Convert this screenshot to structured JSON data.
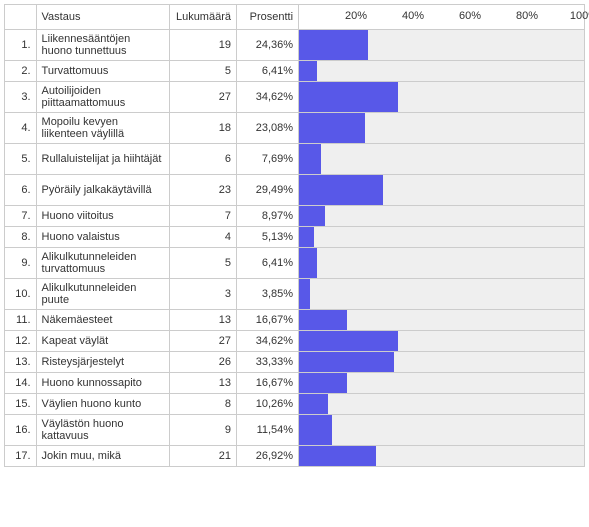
{
  "headers": {
    "response": "Vastaus",
    "count": "Lukumäärä",
    "percent": "Prosentti"
  },
  "axis": {
    "ticks": [
      20,
      40,
      60,
      80,
      100
    ],
    "max": 100,
    "tick_suffix": "%"
  },
  "bar_color": "#5858e8",
  "track_color": "#efefef",
  "border_color": "#cccccc",
  "rows": [
    {
      "idx": "1.",
      "label": "Liikennesääntöjen huono tunnettuus",
      "count": 19,
      "pct": "24,36%",
      "value": 24.36,
      "tall": true
    },
    {
      "idx": "2.",
      "label": "Turvattomuus",
      "count": 5,
      "pct": "6,41%",
      "value": 6.41,
      "tall": false
    },
    {
      "idx": "3.",
      "label": "Autoilijoiden piittaamattomuus",
      "count": 27,
      "pct": "34,62%",
      "value": 34.62,
      "tall": true
    },
    {
      "idx": "4.",
      "label": "Mopoilu kevyen liikenteen väylillä",
      "count": 18,
      "pct": "23,08%",
      "value": 23.08,
      "tall": true
    },
    {
      "idx": "5.",
      "label": "Rullaluistelijat ja hiihtäjät",
      "count": 6,
      "pct": "7,69%",
      "value": 7.69,
      "tall": true
    },
    {
      "idx": "6.",
      "label": "Pyöräily jalkakäytävillä",
      "count": 23,
      "pct": "29,49%",
      "value": 29.49,
      "tall": true
    },
    {
      "idx": "7.",
      "label": "Huono viitoitus",
      "count": 7,
      "pct": "8,97%",
      "value": 8.97,
      "tall": false
    },
    {
      "idx": "8.",
      "label": "Huono valaistus",
      "count": 4,
      "pct": "5,13%",
      "value": 5.13,
      "tall": false
    },
    {
      "idx": "9.",
      "label": "Alikulkutunneleiden turvattomuus",
      "count": 5,
      "pct": "6,41%",
      "value": 6.41,
      "tall": true
    },
    {
      "idx": "10.",
      "label": "Alikulkutunneleiden puute",
      "count": 3,
      "pct": "3,85%",
      "value": 3.85,
      "tall": true
    },
    {
      "idx": "11.",
      "label": "Näkemäesteet",
      "count": 13,
      "pct": "16,67%",
      "value": 16.67,
      "tall": false
    },
    {
      "idx": "12.",
      "label": "Kapeat väylät",
      "count": 27,
      "pct": "34,62%",
      "value": 34.62,
      "tall": false
    },
    {
      "idx": "13.",
      "label": "Risteysjärjestelyt",
      "count": 26,
      "pct": "33,33%",
      "value": 33.33,
      "tall": false
    },
    {
      "idx": "14.",
      "label": "Huono kunnossapito",
      "count": 13,
      "pct": "16,67%",
      "value": 16.67,
      "tall": false
    },
    {
      "idx": "15.",
      "label": "Väylien huono kunto",
      "count": 8,
      "pct": "10,26%",
      "value": 10.26,
      "tall": false
    },
    {
      "idx": "16.",
      "label": "Väylästön huono kattavuus",
      "count": 9,
      "pct": "11,54%",
      "value": 11.54,
      "tall": true
    },
    {
      "idx": "17.",
      "label": "Jokin muu, mikä",
      "count": 21,
      "pct": "26,92%",
      "value": 26.92,
      "tall": false
    }
  ]
}
